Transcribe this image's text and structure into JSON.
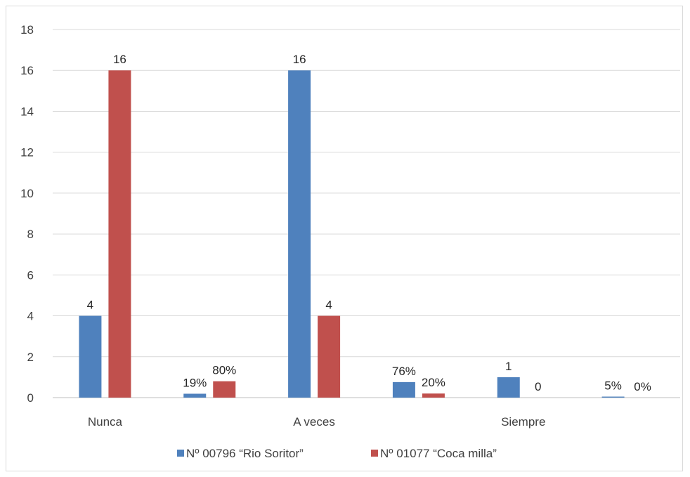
{
  "chart_data": {
    "type": "bar",
    "ylim": [
      0,
      18
    ],
    "yticks": [
      0,
      2,
      4,
      6,
      8,
      10,
      12,
      14,
      16,
      18
    ],
    "grid": true,
    "legend_position": "bottom",
    "slots": [
      "Nunca",
      "",
      "A veces",
      "",
      "Siempre",
      ""
    ],
    "category_labels": [
      "Nunca",
      "A veces",
      "Siempre"
    ],
    "series": [
      {
        "name": "Nº 00796 “Rio Soritor”",
        "color": "#4f81bd",
        "values": [
          4,
          0.19,
          16,
          0.76,
          1,
          0.05
        ],
        "labels": [
          "4",
          "19%",
          "16",
          "76%",
          "1",
          "5%"
        ]
      },
      {
        "name": "Nº 01077 “Coca milla”",
        "color": "#c0504d",
        "values": [
          16,
          0.8,
          4,
          0.2,
          0,
          0
        ],
        "labels": [
          "16",
          "80%",
          "4",
          "20%",
          "0",
          "0%"
        ]
      }
    ]
  }
}
